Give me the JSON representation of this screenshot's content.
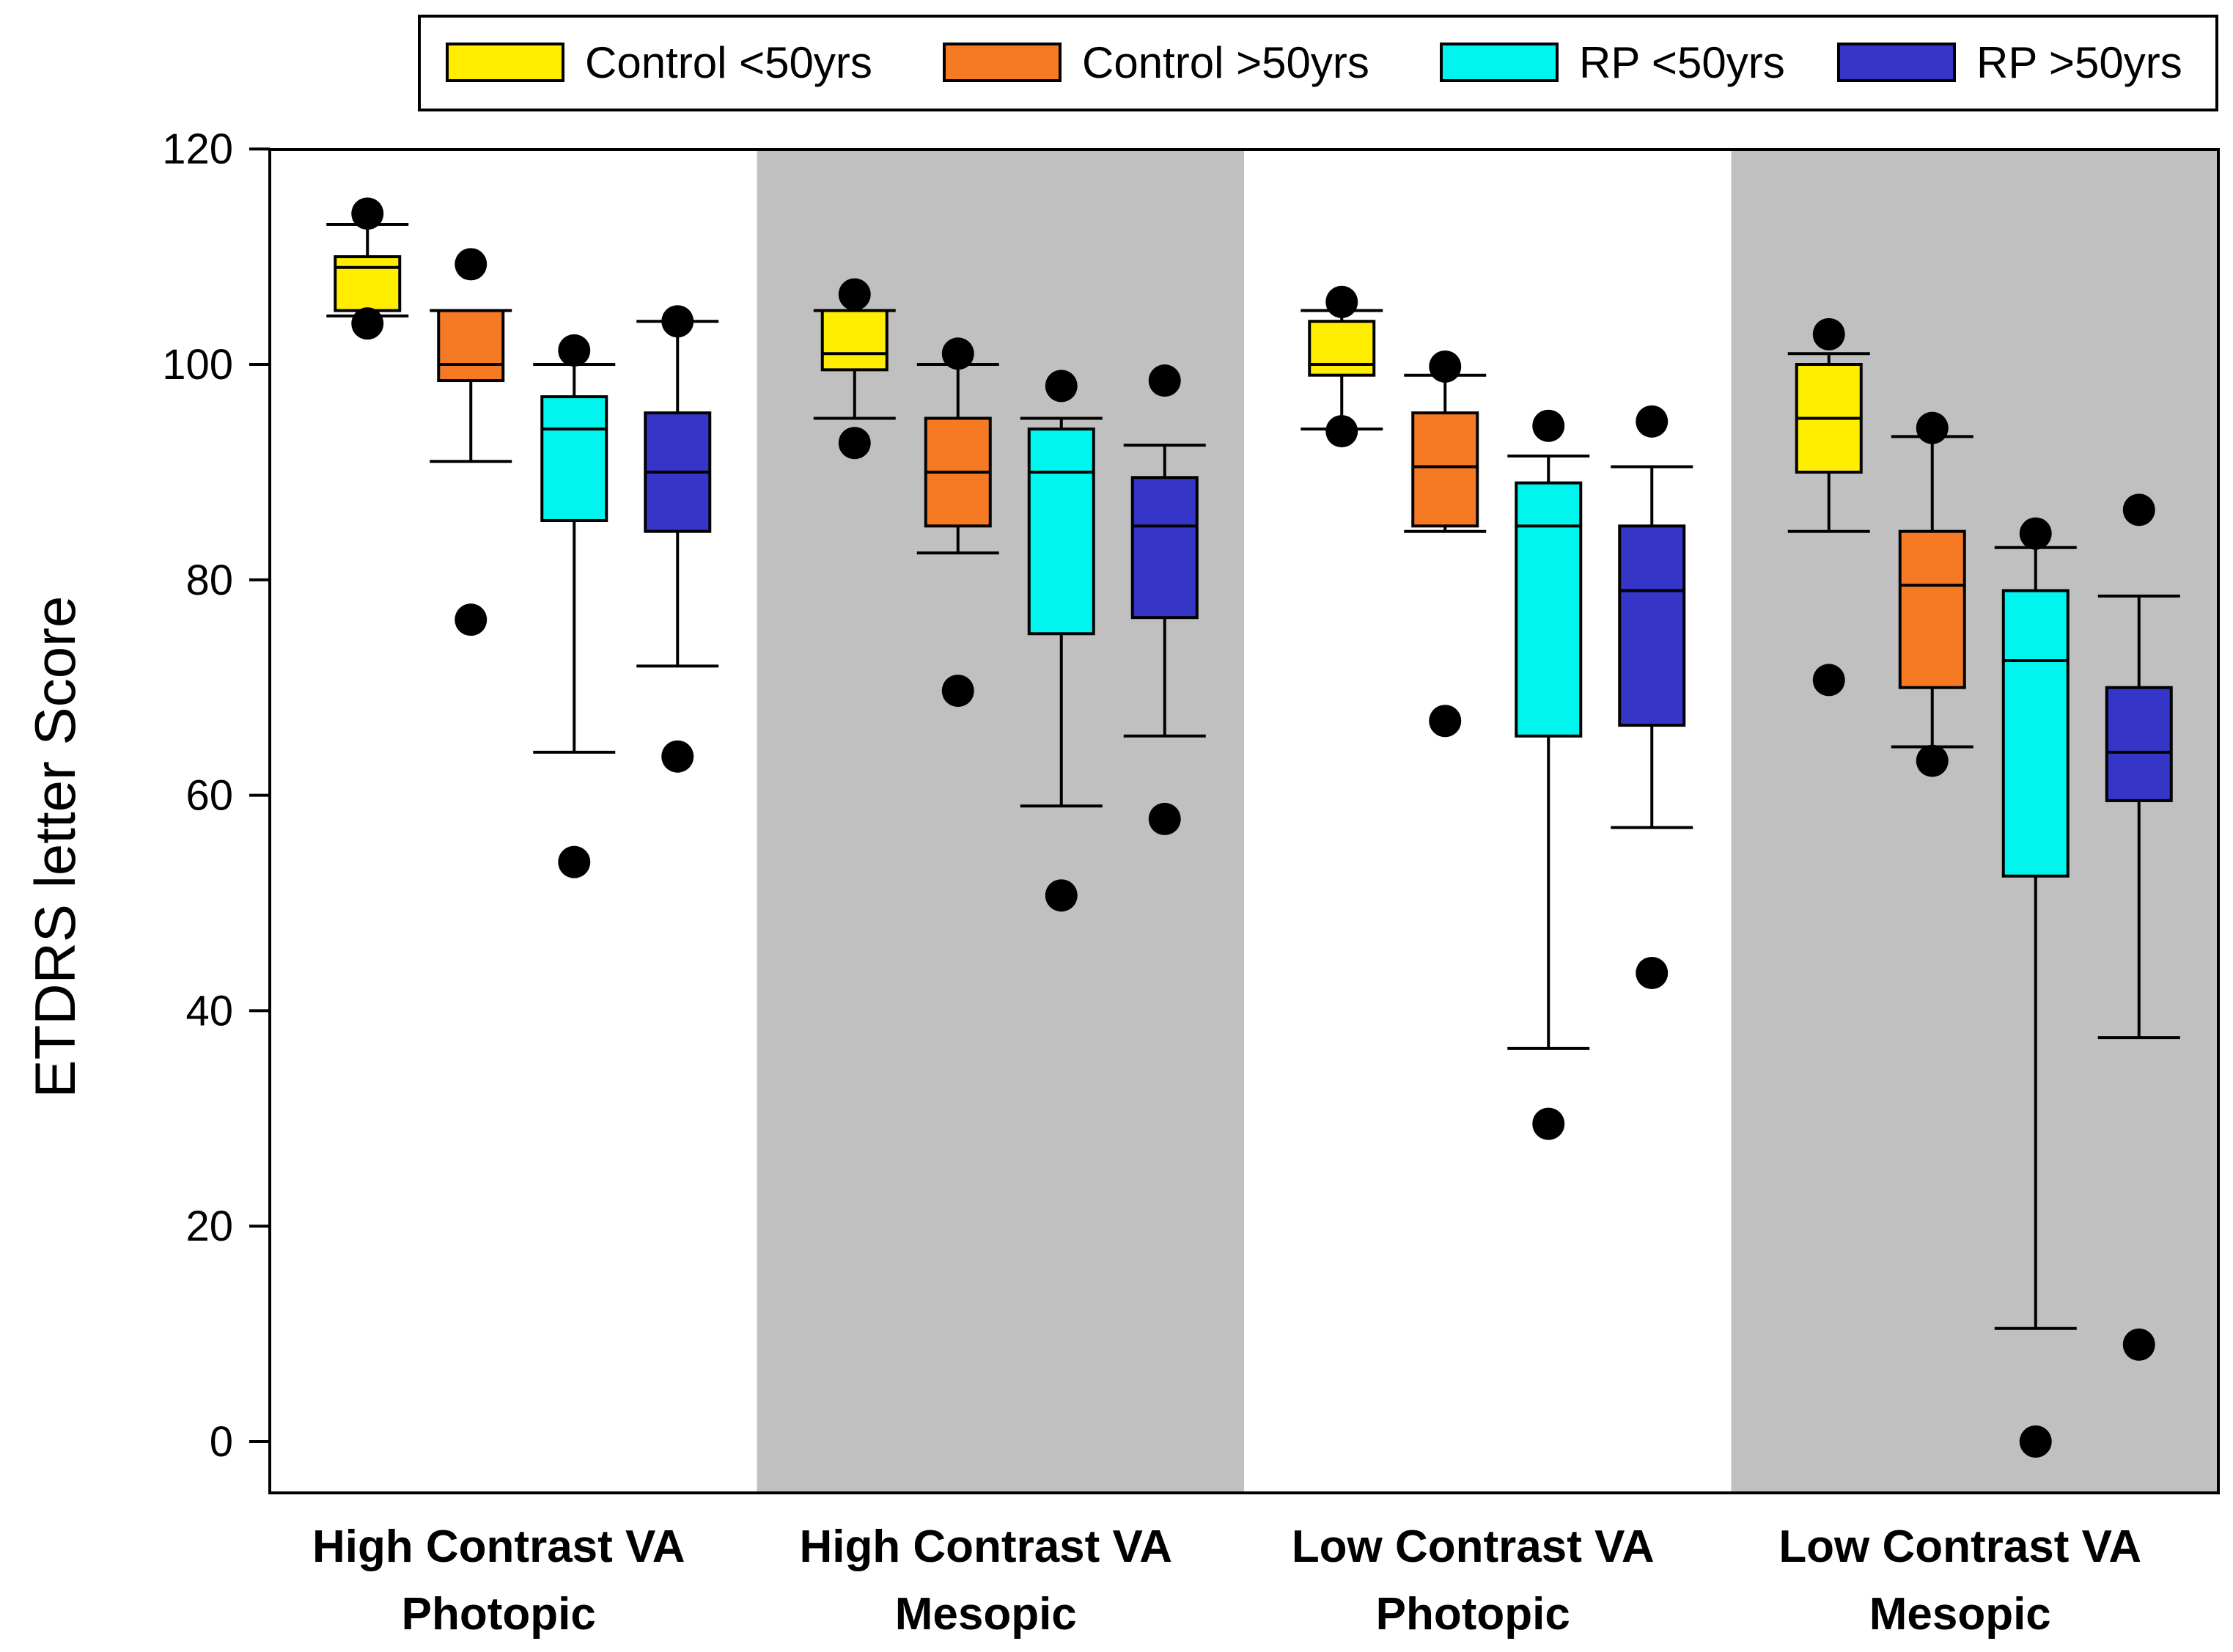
{
  "chart_data": {
    "type": "box",
    "title": "",
    "ylabel": "ETDRS letter Score",
    "xlabel": "",
    "ylim": [
      -5,
      120
    ],
    "yticks": [
      0,
      20,
      40,
      60,
      80,
      100,
      120
    ],
    "grid": false,
    "legend_position": "top-right",
    "categories": [
      {
        "line1": "High Contrast VA",
        "line2": "Photopic",
        "shaded": false
      },
      {
        "line1": "High Contrast VA",
        "line2": "Mesopic",
        "shaded": true
      },
      {
        "line1": "Low Contrast VA",
        "line2": "Photopic",
        "shaded": false
      },
      {
        "line1": "Low Contrast VA",
        "line2": "Mesopic",
        "shaded": true
      }
    ],
    "series": [
      {
        "name": "Control <50yrs",
        "color": "#ffee00",
        "boxes": [
          {
            "whisker_low": 104.5,
            "q1": 105,
            "median": 109,
            "q3": 110,
            "whisker_high": 113,
            "outliers": [
              114,
              103.8
            ]
          },
          {
            "whisker_low": 95,
            "q1": 99.5,
            "median": 101,
            "q3": 105,
            "whisker_high": 105,
            "outliers": [
              106.5,
              92.7
            ]
          },
          {
            "whisker_low": 94,
            "q1": 99,
            "median": 100,
            "q3": 104,
            "whisker_high": 105,
            "outliers": [
              105.8,
              93.8
            ]
          },
          {
            "whisker_low": 84.5,
            "q1": 90,
            "median": 95,
            "q3": 100,
            "whisker_high": 101,
            "outliers": [
              102.8,
              70.7
            ]
          }
        ]
      },
      {
        "name": "Control >50yrs",
        "color": "#f57a23",
        "boxes": [
          {
            "whisker_low": 91,
            "q1": 98.5,
            "median": 100,
            "q3": 105,
            "whisker_high": 105,
            "outliers": [
              109.3,
              76.3
            ]
          },
          {
            "whisker_low": 82.5,
            "q1": 85,
            "median": 90,
            "q3": 95,
            "whisker_high": 100,
            "outliers": [
              101,
              69.7
            ]
          },
          {
            "whisker_low": 84.5,
            "q1": 85,
            "median": 90.5,
            "q3": 95.5,
            "whisker_high": 99,
            "outliers": [
              99.8,
              66.9
            ]
          },
          {
            "whisker_low": 64.5,
            "q1": 70,
            "median": 79.5,
            "q3": 84.5,
            "whisker_high": 93.3,
            "outliers": [
              94.1,
              63.2
            ]
          }
        ]
      },
      {
        "name": "RP <50yrs",
        "color": "#00f5ef",
        "boxes": [
          {
            "whisker_low": 64,
            "q1": 85.5,
            "median": 94,
            "q3": 97,
            "whisker_high": 100,
            "outliers": [
              101.3,
              53.8
            ]
          },
          {
            "whisker_low": 59,
            "q1": 75,
            "median": 90,
            "q3": 94,
            "whisker_high": 95,
            "outliers": [
              98,
              50.7
            ]
          },
          {
            "whisker_low": 36.5,
            "q1": 65.5,
            "median": 85,
            "q3": 89,
            "whisker_high": 91.5,
            "outliers": [
              94.3,
              29.5
            ]
          },
          {
            "whisker_low": 10.5,
            "q1": 52.5,
            "median": 72.5,
            "q3": 79,
            "whisker_high": 83,
            "outliers": [
              84.3,
              0
            ]
          }
        ]
      },
      {
        "name": "RP >50yrs",
        "color": "#3535c8",
        "boxes": [
          {
            "whisker_low": 72,
            "q1": 84.5,
            "median": 90,
            "q3": 95.5,
            "whisker_high": 104,
            "outliers": [
              104,
              63.6
            ]
          },
          {
            "whisker_low": 65.5,
            "q1": 76.5,
            "median": 85,
            "q3": 89.5,
            "whisker_high": 92.5,
            "outliers": [
              98.5,
              57.8
            ]
          },
          {
            "whisker_low": 57,
            "q1": 66.5,
            "median": 79,
            "q3": 85,
            "whisker_high": 90.5,
            "outliers": [
              94.7,
              43.5
            ]
          },
          {
            "whisker_low": 37.5,
            "q1": 59.5,
            "median": 64,
            "q3": 70,
            "whisker_high": 78.5,
            "outliers": [
              86.5,
              9
            ]
          }
        ]
      }
    ]
  }
}
